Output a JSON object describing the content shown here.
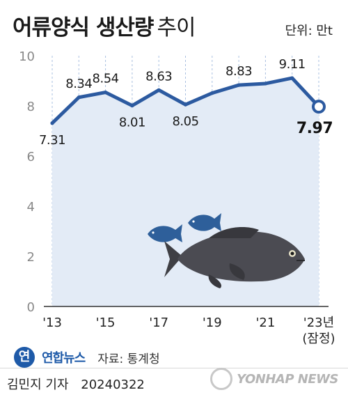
{
  "header": {
    "title_bold": "어류양식 생산량",
    "title_light": "추이",
    "unit": "단위: 만t"
  },
  "chart_data": {
    "type": "area",
    "title": "어류양식 생산량 추이",
    "unit": "만t",
    "x": [
      2013,
      2014,
      2015,
      2016,
      2017,
      2018,
      2019,
      2020,
      2021,
      2022,
      2023
    ],
    "series": [
      {
        "values": [
          7.31,
          8.34,
          8.54,
          8.01,
          8.63,
          8.05,
          8.51,
          8.83,
          8.89,
          9.11,
          7.97
        ]
      }
    ],
    "labeled_points": [
      {
        "x": 2013,
        "label": "7.31"
      },
      {
        "x": 2014,
        "label": "8.34"
      },
      {
        "x": 2015,
        "label": "8.54"
      },
      {
        "x": 2016,
        "label": "8.01"
      },
      {
        "x": 2017,
        "label": "8.63"
      },
      {
        "x": 2018,
        "label": "8.05"
      },
      {
        "x": 2020,
        "label": "8.83"
      },
      {
        "x": 2022,
        "label": "9.11"
      },
      {
        "x": 2023,
        "label": "7.97",
        "highlight": true
      }
    ],
    "x_ticks": [
      {
        "x": 2013,
        "label": "'13"
      },
      {
        "x": 2015,
        "label": "'15"
      },
      {
        "x": 2017,
        "label": "'17"
      },
      {
        "x": 2019,
        "label": "'19"
      },
      {
        "x": 2021,
        "label": "'21"
      },
      {
        "x": 2023,
        "label": "'23년",
        "sublabel": "(잠정)"
      }
    ],
    "y_ticks": [
      0,
      2,
      4,
      6,
      8,
      10
    ],
    "ylim": [
      0,
      10
    ],
    "grid": "vertical dashed",
    "colors": {
      "line": "#2c5aa0",
      "area": "#e3ebf6",
      "grid": "#a9c0e0",
      "axis_text": "#888888"
    }
  },
  "footer": {
    "logo_glyph": "연",
    "logo_text": "연합뉴스",
    "source": "자료: 통계청",
    "reporter": "김민지 기자",
    "date": "20240322",
    "watermark": "YONHAP NEWS"
  }
}
